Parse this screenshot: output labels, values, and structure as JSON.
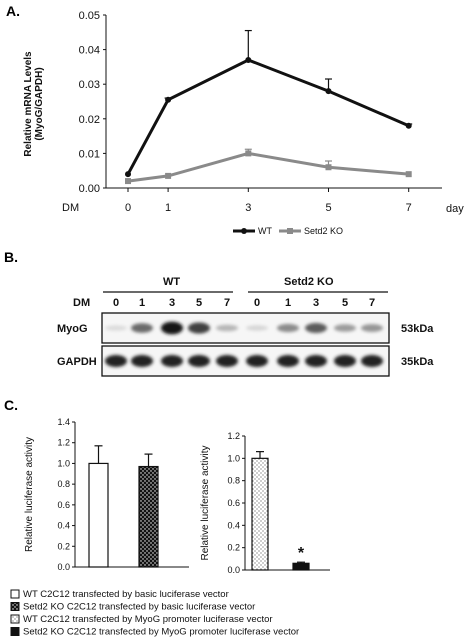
{
  "panels": {
    "a": "A.",
    "b": "B.",
    "c": "C."
  },
  "chart_data": [
    {
      "type": "line",
      "panel": "A.",
      "x": [
        0,
        1,
        3,
        5,
        7
      ],
      "x_tick_labels": [
        "0",
        "1",
        "3",
        "5",
        "7"
      ],
      "x_prefix_label": "DM",
      "x_suffix_label": "day",
      "ylabel_lines": [
        "Relative mRNA Levels",
        "(MyoG/GAPDH)"
      ],
      "ylim": [
        0,
        0.05
      ],
      "y_tick_labels": [
        "0.00",
        "0.01",
        "0.02",
        "0.03",
        "0.04",
        "0.05"
      ],
      "grid": false,
      "legend_position": "bottom",
      "series": [
        {
          "name": "WT",
          "color": "#111111",
          "marker": "circle",
          "values": [
            0.004,
            0.0255,
            0.037,
            0.028,
            0.018
          ],
          "errors": [
            0,
            0.0005,
            0.0085,
            0.0035,
            0.0005
          ]
        },
        {
          "name": "Setd2 KO",
          "color": "#8a8a8a",
          "marker": "square",
          "values": [
            0.002,
            0.0035,
            0.01,
            0.006,
            0.004
          ],
          "errors": [
            0,
            0,
            0.0012,
            0.0018,
            0
          ]
        }
      ]
    },
    {
      "type": "bar",
      "panel": "C.",
      "categories": [
        "WT C2C12 transfected by basic luciferase vector",
        "Setd2 KO C2C12 transfected by basic luciferase vector"
      ],
      "values": [
        1.0,
        0.97
      ],
      "errors": [
        0.17,
        0.12
      ],
      "fills": [
        "white",
        "dotted-black"
      ],
      "ylabel": "Relative luciferase activity",
      "ylim": [
        0,
        1.4
      ],
      "y_tick_labels": [
        "0.0",
        "0.2",
        "0.4",
        "0.6",
        "0.8",
        "1.0",
        "1.2",
        "1.4"
      ]
    },
    {
      "type": "bar",
      "panel": "C.",
      "categories": [
        "WT C2C12 transfected by MyoG promoter luciferase vector",
        "Setd2 KO C2C12 transfected by MyoG promoter luciferase vector"
      ],
      "values": [
        1.0,
        0.06
      ],
      "errors": [
        0.06,
        0.01
      ],
      "fills": [
        "light-dotted",
        "black"
      ],
      "annotation": "*",
      "ylabel": "Relative luciferase activity",
      "ylim": [
        0,
        1.2
      ],
      "y_tick_labels": [
        "0.0",
        "0.2",
        "0.4",
        "0.6",
        "0.8",
        "1.0",
        "1.2"
      ]
    }
  ],
  "blot": {
    "groups": [
      "WT",
      "Setd2 KO"
    ],
    "dm_label": "DM",
    "lane_labels": [
      "0",
      "1",
      "3",
      "5",
      "7",
      "0",
      "1",
      "3",
      "5",
      "7"
    ],
    "rows": [
      {
        "name": "MyoG",
        "size": "53kDa",
        "intensities": [
          0.03,
          0.55,
          0.95,
          0.75,
          0.2,
          0.05,
          0.4,
          0.62,
          0.32,
          0.35
        ]
      },
      {
        "name": "GAPDH",
        "size": "35kDa",
        "intensities": [
          0.88,
          0.88,
          0.88,
          0.88,
          0.88,
          0.88,
          0.88,
          0.88,
          0.88,
          0.88
        ]
      }
    ]
  },
  "legend_items": [
    {
      "text": "WT C2C12 transfected by basic luciferase vector",
      "swatch": "white"
    },
    {
      "text": "Setd2 KO C2C12 transfected by basic luciferase vector",
      "swatch": "dotted-black"
    },
    {
      "text": "WT C2C12 transfected by MyoG promoter luciferase vector",
      "swatch": "light-dotted"
    },
    {
      "text": "Setd2 KO C2C12 transfected by MyoG promoter luciferase vector",
      "swatch": "black"
    }
  ]
}
